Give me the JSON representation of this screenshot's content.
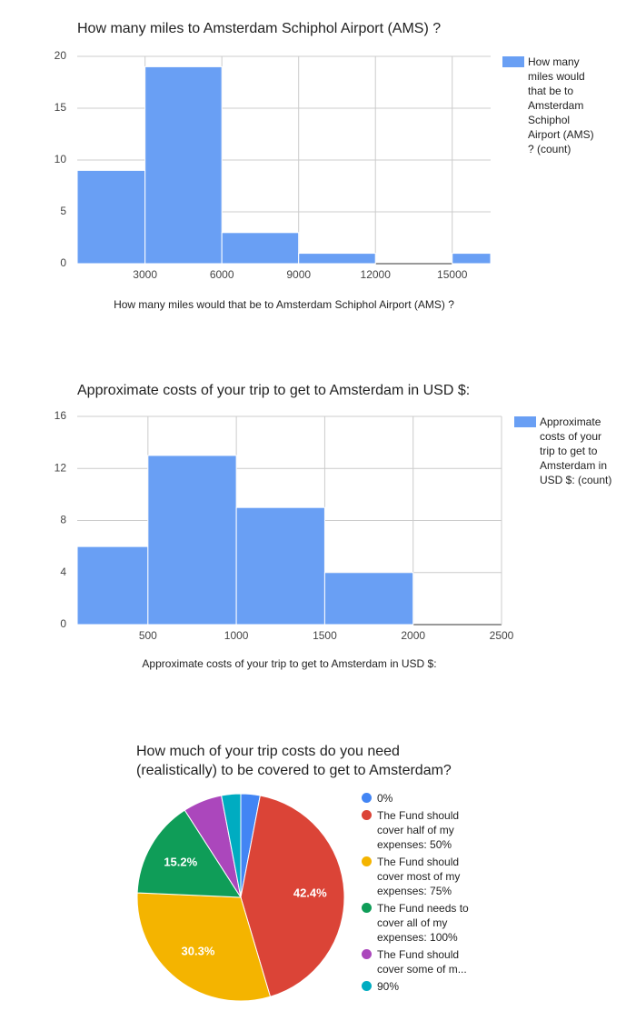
{
  "chart_data": [
    {
      "type": "histogram",
      "title": "How many miles to Amsterdam Schiphol Airport (AMS) ?",
      "x_label": "How many miles would that be to Amsterdam Schiphol Airport (AMS) ?",
      "bins": [
        350,
        3000,
        6000,
        9000,
        12000,
        15000,
        16500
      ],
      "series": [
        {
          "name": "How many miles would that be to Amsterdam Schiphol Airport (AMS) ? (count)",
          "color": "#699ff4",
          "values": [
            9,
            19,
            3,
            1,
            0,
            1
          ]
        }
      ],
      "xlim": [
        350,
        16500
      ],
      "xticks": [
        3000,
        6000,
        9000,
        12000,
        15000
      ],
      "ylim": [
        0,
        20
      ],
      "yticks": [
        0,
        5,
        10,
        15,
        20
      ],
      "grid": true,
      "legend": "right"
    },
    {
      "type": "histogram",
      "title": "Approximate costs of your trip to get to Amsterdam in USD $:",
      "x_label": "Approximate costs of your trip to get to Amsterdam in USD $:",
      "bins": [
        100,
        500,
        1000,
        1500,
        2000,
        2500
      ],
      "series": [
        {
          "name": "Approximate costs of your trip to get to Amsterdam in USD $: (count)",
          "color": "#699ff4",
          "values": [
            6,
            13,
            9,
            4,
            0
          ]
        }
      ],
      "xlim": [
        100,
        2500
      ],
      "xticks": [
        500,
        1000,
        1500,
        2000,
        2500
      ],
      "ylim": [
        0,
        16
      ],
      "yticks": [
        0,
        4,
        8,
        12,
        16
      ],
      "grid": true,
      "legend": "right"
    },
    {
      "type": "pie",
      "title": "How much of your trip costs do you need (realistically) to be covered to get to Amsterdam?",
      "categories": [
        "0%",
        "The Fund should cover half of my expenses: 50%",
        "The Fund should cover most of my expenses: 75%",
        "The Fund needs to cover all of my expenses: 100%",
        "The Fund should cover some of m...",
        "90%"
      ],
      "values": [
        3.0,
        42.4,
        30.3,
        15.2,
        6.1,
        3.0
      ],
      "value_labels": [
        null,
        "42.4%",
        "30.3%",
        "15.2%",
        null,
        null
      ],
      "colors": [
        "#4285f4",
        "#db4437",
        "#f4b400",
        "#0f9d58",
        "#ab47bc",
        "#00acc1"
      ],
      "legend": "right"
    }
  ]
}
